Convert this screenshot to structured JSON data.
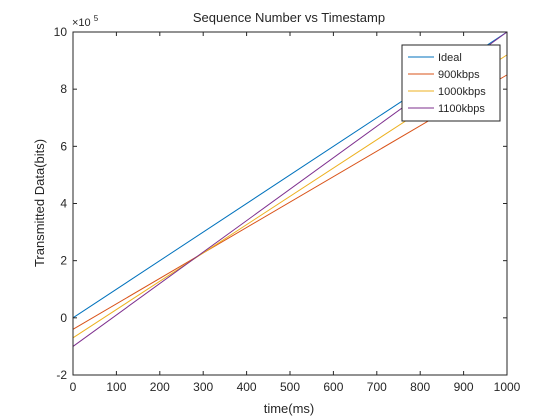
{
  "chart_data": {
    "type": "line",
    "title": "Sequence Number vs Timestamp",
    "xlabel": "time(ms)",
    "ylabel": "Transmitted Data(bits)",
    "y_exponent_base": "×10",
    "y_exponent_power": "5",
    "xlim": [
      0,
      1000
    ],
    "ylim": [
      -2,
      10
    ],
    "y_scale_factor": 100000,
    "x_ticks": [
      "0",
      "100",
      "200",
      "300",
      "400",
      "500",
      "600",
      "700",
      "800",
      "900",
      "1000"
    ],
    "x_tick_values": [
      0,
      100,
      200,
      300,
      400,
      500,
      600,
      700,
      800,
      900,
      1000
    ],
    "y_ticks": [
      "-2",
      "0",
      "2",
      "4",
      "6",
      "8",
      "10"
    ],
    "y_tick_values": [
      -2,
      0,
      2,
      4,
      6,
      8,
      10
    ],
    "grid": false,
    "legend_position": "top-right",
    "series": [
      {
        "name": "Ideal",
        "color": "#0072BD",
        "x": [
          0,
          1000
        ],
        "y": [
          0,
          10
        ]
      },
      {
        "name": "900kbps",
        "color": "#D95319",
        "x": [
          0,
          1000
        ],
        "y": [
          -0.4,
          8.5
        ]
      },
      {
        "name": "1000kbps",
        "color": "#EDB120",
        "x": [
          0,
          1000
        ],
        "y": [
          -0.7,
          9.2
        ]
      },
      {
        "name": "1100kbps",
        "color": "#7E2F8E",
        "x": [
          0,
          1000
        ],
        "y": [
          -1.0,
          10.0
        ]
      }
    ]
  }
}
